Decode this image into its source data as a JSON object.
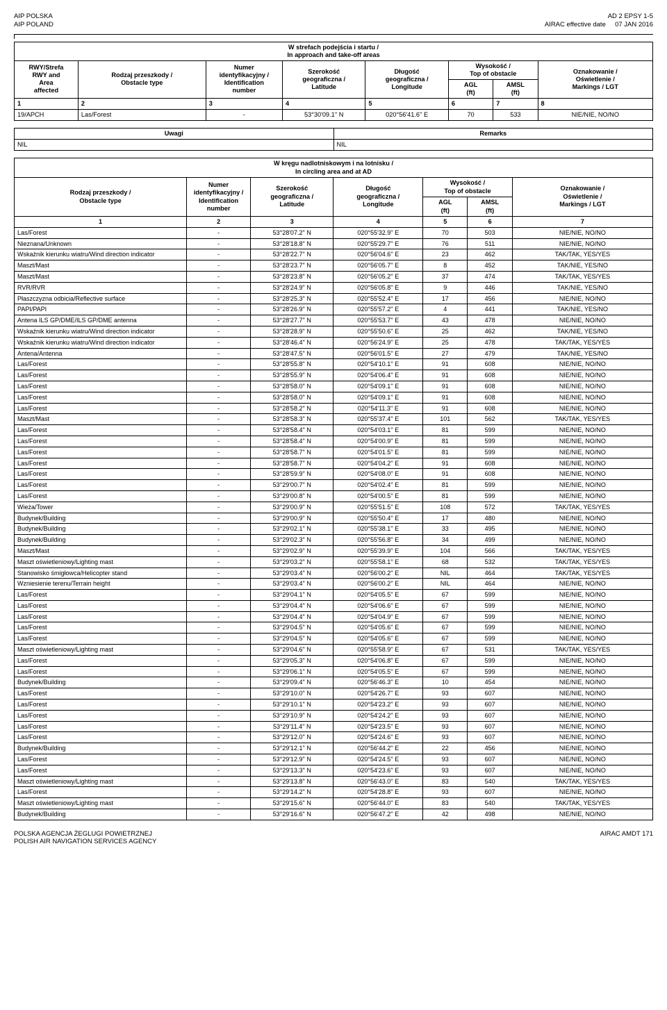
{
  "header": {
    "left1": "AIP POLSKA",
    "left2": "AIP POLAND",
    "right1": "AD 2 EPSY 1-5",
    "right2_label": "AIRAC effective date",
    "right2_date": "07 JAN 2016"
  },
  "table1": {
    "section_title": "W strefach podejścia i startu /\nIn approach and take-off areas",
    "h_col1": "RWY/Strefa\nRWY and\nArea\naffected",
    "h_col2": "Rodzaj przeszkody /\nObstacle type",
    "h_col3": "Numer\nidentyfikacyjny /\nIdentification\nnumber",
    "h_col4": "Szerokość\ngeograficzna /\nLatitude",
    "h_col5": "Długość\ngeograficzna /\nLongitude",
    "h_col67": "Wysokość /\nTop of obstacle",
    "h_col6": "AGL\n(ft)",
    "h_col7": "AMSL\n(ft)",
    "h_col8": "Oznakowanie /\nOświetlenie /\nMarkings / LGT",
    "nums": [
      "1",
      "2",
      "3",
      "4",
      "5",
      "6",
      "7",
      "8"
    ],
    "row": {
      "c1": "19/APCH",
      "c2": "Las/Forest",
      "c3": "-",
      "c4": "53°30'09.1'' N",
      "c5": "020°56'41.6'' E",
      "c6": "70",
      "c7": "533",
      "c8": "NIE/NIE, NO/NO"
    }
  },
  "remarks": {
    "h_left": "Uwagi",
    "h_right": "Remarks",
    "v_left": "NIL",
    "v_right": "NIL"
  },
  "table3": {
    "section_title": "W kręgu nadlotniskowym i na lotnisku /\nIn circling area and at AD",
    "h_col1": "Rodzaj przeszkody /\nObstacle type",
    "h_col2": "Numer\nidentyfikacyjny /\nIdentification\nnumber",
    "h_col3": "Szerokość\ngeograficzna /\nLatitude",
    "h_col4": "Długość\ngeograficzna /\nLongitude",
    "h_col56": "Wysokość /\nTop of obstacle",
    "h_col5": "AGL\n(ft)",
    "h_col6": "AMSL\n(ft)",
    "h_col7": "Oznakowanie /\nOświetlenie /\nMarkings / LGT",
    "nums": [
      "1",
      "2",
      "3",
      "4",
      "5",
      "6",
      "7"
    ],
    "rows": [
      {
        "c1": "Las/Forest",
        "c2": "-",
        "c3": "53°28'07.2'' N",
        "c4": "020°55'32.9'' E",
        "c5": "70",
        "c6": "503",
        "c7": "NIE/NIE, NO/NO"
      },
      {
        "c1": "Nieznana/Unknown",
        "c2": "-",
        "c3": "53°28'18.8'' N",
        "c4": "020°55'29.7'' E",
        "c5": "76",
        "c6": "511",
        "c7": "NIE/NIE, NO/NO"
      },
      {
        "c1": "Wskaźnik kierunku wiatru/Wind direction indicator",
        "c2": "-",
        "c3": "53°28'22.7'' N",
        "c4": "020°56'04.6'' E",
        "c5": "23",
        "c6": "462",
        "c7": "TAK/TAK, YES/YES"
      },
      {
        "c1": "Maszt/Mast",
        "c2": "-",
        "c3": "53°28'23.7'' N",
        "c4": "020°56'05.7'' E",
        "c5": "8",
        "c6": "452",
        "c7": "TAK/NIE, YES/NO"
      },
      {
        "c1": "Maszt/Mast",
        "c2": "-",
        "c3": "53°28'23.8'' N",
        "c4": "020°56'05.2'' E",
        "c5": "37",
        "c6": "474",
        "c7": "TAK/TAK, YES/YES"
      },
      {
        "c1": "RVR/RVR",
        "c2": "-",
        "c3": "53°28'24.9'' N",
        "c4": "020°56'05.8'' E",
        "c5": "9",
        "c6": "446",
        "c7": "TAK/NIE, YES/NO"
      },
      {
        "c1": "Płaszczyzna odbicia/Reflective surface",
        "c2": "-",
        "c3": "53°28'25.3'' N",
        "c4": "020°55'52.4'' E",
        "c5": "17",
        "c6": "456",
        "c7": "NIE/NIE, NO/NO"
      },
      {
        "c1": "PAPI/PAPI",
        "c2": "-",
        "c3": "53°28'26.9'' N",
        "c4": "020°55'57.2'' E",
        "c5": "4",
        "c6": "441",
        "c7": "TAK/NIE, YES/NO"
      },
      {
        "c1": "Antena ILS GP/DME/ILS GP/DME antenna",
        "c2": "-",
        "c3": "53°28'27.7'' N",
        "c4": "020°55'53.7'' E",
        "c5": "43",
        "c6": "478",
        "c7": "NIE/NIE, NO/NO"
      },
      {
        "c1": "Wskaźnik kierunku wiatru/Wind direction indicator",
        "c2": "-",
        "c3": "53°28'28.9'' N",
        "c4": "020°55'50.6'' E",
        "c5": "25",
        "c6": "462",
        "c7": "TAK/NIE, YES/NO"
      },
      {
        "c1": "Wskaźnik kierunku wiatru/Wind direction indicator",
        "c2": "-",
        "c3": "53°28'46.4'' N",
        "c4": "020°56'24.9'' E",
        "c5": "25",
        "c6": "478",
        "c7": "TAK/TAK, YES/YES"
      },
      {
        "c1": "Antena/Antenna",
        "c2": "-",
        "c3": "53°28'47.5'' N",
        "c4": "020°56'01.5'' E",
        "c5": "27",
        "c6": "479",
        "c7": "TAK/NIE, YES/NO"
      },
      {
        "c1": "Las/Forest",
        "c2": "-",
        "c3": "53°28'55.8'' N",
        "c4": "020°54'10.1'' E",
        "c5": "91",
        "c6": "608",
        "c7": "NIE/NIE, NO/NO"
      },
      {
        "c1": "Las/Forest",
        "c2": "-",
        "c3": "53°28'55.9'' N",
        "c4": "020°54'06.4'' E",
        "c5": "91",
        "c6": "608",
        "c7": "NIE/NIE, NO/NO"
      },
      {
        "c1": "Las/Forest",
        "c2": "-",
        "c3": "53°28'58.0'' N",
        "c4": "020°54'09.1'' E",
        "c5": "91",
        "c6": "608",
        "c7": "NIE/NIE, NO/NO"
      },
      {
        "c1": "Las/Forest",
        "c2": "-",
        "c3": "53°28'58.0'' N",
        "c4": "020°54'09.1'' E",
        "c5": "91",
        "c6": "608",
        "c7": "NIE/NIE, NO/NO"
      },
      {
        "c1": "Las/Forest",
        "c2": "-",
        "c3": "53°28'58.2'' N",
        "c4": "020°54'11.3'' E",
        "c5": "91",
        "c6": "608",
        "c7": "NIE/NIE, NO/NO"
      },
      {
        "c1": "Maszt/Mast",
        "c2": "-",
        "c3": "53°28'58.3'' N",
        "c4": "020°55'37.4'' E",
        "c5": "101",
        "c6": "562",
        "c7": "TAK/TAK, YES/YES"
      },
      {
        "c1": "Las/Forest",
        "c2": "-",
        "c3": "53°28'58.4'' N",
        "c4": "020°54'03.1'' E",
        "c5": "81",
        "c6": "599",
        "c7": "NIE/NIE, NO/NO"
      },
      {
        "c1": "Las/Forest",
        "c2": "-",
        "c3": "53°28'58.4'' N",
        "c4": "020°54'00.9'' E",
        "c5": "81",
        "c6": "599",
        "c7": "NIE/NIE, NO/NO"
      },
      {
        "c1": "Las/Forest",
        "c2": "-",
        "c3": "53°28'58.7'' N",
        "c4": "020°54'01.5'' E",
        "c5": "81",
        "c6": "599",
        "c7": "NIE/NIE, NO/NO"
      },
      {
        "c1": "Las/Forest",
        "c2": "-",
        "c3": "53°28'58.7'' N",
        "c4": "020°54'04.2'' E",
        "c5": "91",
        "c6": "608",
        "c7": "NIE/NIE, NO/NO"
      },
      {
        "c1": "Las/Forest",
        "c2": "-",
        "c3": "53°28'59.9'' N",
        "c4": "020°54'08.0'' E",
        "c5": "91",
        "c6": "608",
        "c7": "NIE/NIE, NO/NO"
      },
      {
        "c1": "Las/Forest",
        "c2": "-",
        "c3": "53°29'00.7'' N",
        "c4": "020°54'02.4'' E",
        "c5": "81",
        "c6": "599",
        "c7": "NIE/NIE, NO/NO"
      },
      {
        "c1": "Las/Forest",
        "c2": "-",
        "c3": "53°29'00.8'' N",
        "c4": "020°54'00.5'' E",
        "c5": "81",
        "c6": "599",
        "c7": "NIE/NIE, NO/NO"
      },
      {
        "c1": "Wieża/Tower",
        "c2": "-",
        "c3": "53°29'00.9'' N",
        "c4": "020°55'51.5'' E",
        "c5": "108",
        "c6": "572",
        "c7": "TAK/TAK, YES/YES"
      },
      {
        "c1": "Budynek/Building",
        "c2": "-",
        "c3": "53°29'00.9'' N",
        "c4": "020°55'50.4'' E",
        "c5": "17",
        "c6": "480",
        "c7": "NIE/NIE, NO/NO"
      },
      {
        "c1": "Budynek/Building",
        "c2": "-",
        "c3": "53°29'02.1'' N",
        "c4": "020°55'38.1'' E",
        "c5": "33",
        "c6": "495",
        "c7": "NIE/NIE, NO/NO"
      },
      {
        "c1": "Budynek/Building",
        "c2": "-",
        "c3": "53°29'02.3'' N",
        "c4": "020°55'56.8'' E",
        "c5": "34",
        "c6": "499",
        "c7": "NIE/NIE, NO/NO"
      },
      {
        "c1": "Maszt/Mast",
        "c2": "-",
        "c3": "53°29'02.9'' N",
        "c4": "020°55'39.9'' E",
        "c5": "104",
        "c6": "566",
        "c7": "TAK/TAK, YES/YES"
      },
      {
        "c1": "Maszt oświetleniowy/Lighting mast",
        "c2": "-",
        "c3": "53°29'03.2'' N",
        "c4": "020°55'58.1'' E",
        "c5": "68",
        "c6": "532",
        "c7": "TAK/TAK, YES/YES"
      },
      {
        "c1": "Stanowisko śmigłowca/Helicopter stand",
        "c2": "-",
        "c3": "53°29'03.4'' N",
        "c4": "020°56'00.2'' E",
        "c5": "NIL",
        "c6": "464",
        "c7": "TAK/TAK, YES/YES"
      },
      {
        "c1": "Wzniesienie terenu/Terrain height",
        "c2": "-",
        "c3": "53°29'03.4'' N",
        "c4": "020°56'00.2'' E",
        "c5": "NIL",
        "c6": "464",
        "c7": "NIE/NIE, NO/NO"
      },
      {
        "c1": "Las/Forest",
        "c2": "-",
        "c3": "53°29'04.1'' N",
        "c4": "020°54'05.5'' E",
        "c5": "67",
        "c6": "599",
        "c7": "NIE/NIE, NO/NO"
      },
      {
        "c1": "Las/Forest",
        "c2": "-",
        "c3": "53°29'04.4'' N",
        "c4": "020°54'06.6'' E",
        "c5": "67",
        "c6": "599",
        "c7": "NIE/NIE, NO/NO"
      },
      {
        "c1": "Las/Forest",
        "c2": "-",
        "c3": "53°29'04.4'' N",
        "c4": "020°54'04.9'' E",
        "c5": "67",
        "c6": "599",
        "c7": "NIE/NIE, NO/NO"
      },
      {
        "c1": "Las/Forest",
        "c2": "-",
        "c3": "53°29'04.5'' N",
        "c4": "020°54'05.6'' E",
        "c5": "67",
        "c6": "599",
        "c7": "NIE/NIE, NO/NO"
      },
      {
        "c1": "Las/Forest",
        "c2": "-",
        "c3": "53°29'04.5'' N",
        "c4": "020°54'05.6'' E",
        "c5": "67",
        "c6": "599",
        "c7": "NIE/NIE, NO/NO"
      },
      {
        "c1": "Maszt oświetleniowy/Lighting mast",
        "c2": "-",
        "c3": "53°29'04.6'' N",
        "c4": "020°55'58.9'' E",
        "c5": "67",
        "c6": "531",
        "c7": "TAK/TAK, YES/YES"
      },
      {
        "c1": "Las/Forest",
        "c2": "-",
        "c3": "53°29'05.3'' N",
        "c4": "020°54'06.8'' E",
        "c5": "67",
        "c6": "599",
        "c7": "NIE/NIE, NO/NO"
      },
      {
        "c1": "Las/Forest",
        "c2": "-",
        "c3": "53°29'06.1'' N",
        "c4": "020°54'05.5'' E",
        "c5": "67",
        "c6": "599",
        "c7": "NIE/NIE, NO/NO"
      },
      {
        "c1": "Budynek/Building",
        "c2": "-",
        "c3": "53°29'09.4'' N",
        "c4": "020°56'46.3'' E",
        "c5": "10",
        "c6": "454",
        "c7": "NIE/NIE, NO/NO"
      },
      {
        "c1": "Las/Forest",
        "c2": "-",
        "c3": "53°29'10.0'' N",
        "c4": "020°54'26.7'' E",
        "c5": "93",
        "c6": "607",
        "c7": "NIE/NIE, NO/NO"
      },
      {
        "c1": "Las/Forest",
        "c2": "-",
        "c3": "53°29'10.1'' N",
        "c4": "020°54'23.2'' E",
        "c5": "93",
        "c6": "607",
        "c7": "NIE/NIE, NO/NO"
      },
      {
        "c1": "Las/Forest",
        "c2": "-",
        "c3": "53°29'10.9'' N",
        "c4": "020°54'24.2'' E",
        "c5": "93",
        "c6": "607",
        "c7": "NIE/NIE, NO/NO"
      },
      {
        "c1": "Las/Forest",
        "c2": "-",
        "c3": "53°29'11.4'' N",
        "c4": "020°54'23.5'' E",
        "c5": "93",
        "c6": "607",
        "c7": "NIE/NIE, NO/NO"
      },
      {
        "c1": "Las/Forest",
        "c2": "-",
        "c3": "53°29'12.0'' N",
        "c4": "020°54'24.6'' E",
        "c5": "93",
        "c6": "607",
        "c7": "NIE/NIE, NO/NO"
      },
      {
        "c1": "Budynek/Building",
        "c2": "-",
        "c3": "53°29'12.1'' N",
        "c4": "020°56'44.2'' E",
        "c5": "22",
        "c6": "456",
        "c7": "NIE/NIE, NO/NO"
      },
      {
        "c1": "Las/Forest",
        "c2": "-",
        "c3": "53°29'12.9'' N",
        "c4": "020°54'24.5'' E",
        "c5": "93",
        "c6": "607",
        "c7": "NIE/NIE, NO/NO"
      },
      {
        "c1": "Las/Forest",
        "c2": "-",
        "c3": "53°29'13.3'' N",
        "c4": "020°54'23.6'' E",
        "c5": "93",
        "c6": "607",
        "c7": "NIE/NIE, NO/NO"
      },
      {
        "c1": "Maszt oświetleniowy/Lighting mast",
        "c2": "-",
        "c3": "53°29'13.8'' N",
        "c4": "020°56'43.0'' E",
        "c5": "83",
        "c6": "540",
        "c7": "TAK/TAK, YES/YES"
      },
      {
        "c1": "Las/Forest",
        "c2": "-",
        "c3": "53°29'14.2'' N",
        "c4": "020°54'28.8'' E",
        "c5": "93",
        "c6": "607",
        "c7": "NIE/NIE, NO/NO"
      },
      {
        "c1": "Maszt oświetleniowy/Lighting mast",
        "c2": "-",
        "c3": "53°29'15.6'' N",
        "c4": "020°56'44.0'' E",
        "c5": "83",
        "c6": "540",
        "c7": "TAK/TAK, YES/YES"
      },
      {
        "c1": "Budynek/Building",
        "c2": "-",
        "c3": "53°29'16.6'' N",
        "c4": "020°56'47.2'' E",
        "c5": "42",
        "c6": "498",
        "c7": "NIE/NIE, NO/NO"
      }
    ]
  },
  "footer": {
    "left1": "POLSKA AGENCJA ŻEGLUGI POWIETRZNEJ",
    "left2": "POLISH AIR NAVIGATION SERVICES AGENCY",
    "right": "AIRAC AMDT   171"
  }
}
